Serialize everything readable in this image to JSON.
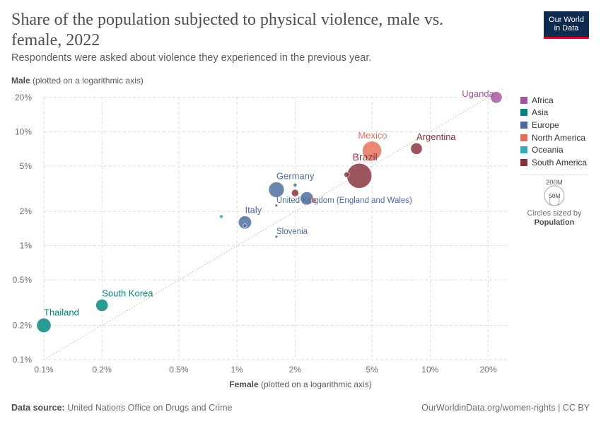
{
  "header": {
    "title": "Share of the population subjected to physical violence, male vs. female, 2022",
    "subtitle": "Respondents were asked about violence they experienced in the previous year.",
    "logo_line1": "Our World",
    "logo_line2": "in Data"
  },
  "axes": {
    "y_label_bold": "Male",
    "y_label_rest": "(plotted on a logarithmic axis)",
    "x_label_bold": "Female",
    "x_label_rest": "(plotted on a logarithmic axis)"
  },
  "footer": {
    "source_label": "Data source:",
    "source_text": "United Nations Office on Drugs and Crime",
    "credit": "OurWorldinData.org/women-rights | CC BY"
  },
  "legend": {
    "items": [
      {
        "name": "Africa",
        "color": "#a2559c"
      },
      {
        "name": "Asia",
        "color": "#00847e"
      },
      {
        "name": "Europe",
        "color": "#4c6a9c"
      },
      {
        "name": "North America",
        "color": "#e56e5a"
      },
      {
        "name": "Oceania",
        "color": "#38aaba"
      },
      {
        "name": "South America",
        "color": "#883039"
      }
    ],
    "size_big": "200M",
    "size_small": "50M",
    "size_note_line": "Circles sized by",
    "size_note_bold": "Population"
  },
  "chart_data": {
    "type": "scatter",
    "x_scale": "log",
    "y_scale": "log",
    "xlim": [
      0.1,
      25
    ],
    "ylim": [
      0.1,
      24
    ],
    "x_ticks": [
      {
        "value": 0.1,
        "label": "0.1%"
      },
      {
        "value": 0.2,
        "label": "0.2%"
      },
      {
        "value": 0.5,
        "label": "0.5%"
      },
      {
        "value": 1,
        "label": "1%"
      },
      {
        "value": 2,
        "label": "2%"
      },
      {
        "value": 5,
        "label": "5%"
      },
      {
        "value": 10,
        "label": "10%"
      },
      {
        "value": 20,
        "label": "20%"
      }
    ],
    "y_ticks": [
      {
        "value": 0.1,
        "label": "0.1%"
      },
      {
        "value": 0.2,
        "label": "0.2%"
      },
      {
        "value": 0.5,
        "label": "0.5%"
      },
      {
        "value": 1,
        "label": "1%"
      },
      {
        "value": 2,
        "label": "2%"
      },
      {
        "value": 5,
        "label": "5%"
      },
      {
        "value": 10,
        "label": "10%"
      },
      {
        "value": 20,
        "label": "20%"
      }
    ],
    "grid": true,
    "diagonal_reference_line": true,
    "legend_position": "right",
    "points": [
      {
        "label": "Uganda",
        "region": "Africa",
        "x": 22,
        "y": 20,
        "population_m": 47
      },
      {
        "label": "Argentina",
        "region": "South America",
        "x": 8.5,
        "y": 7.1,
        "population_m": 46
      },
      {
        "label": "Mexico",
        "region": "North America",
        "x": 5,
        "y": 6.8,
        "population_m": 128
      },
      {
        "label": "Brazil",
        "region": "South America",
        "x": 4.3,
        "y": 4.1,
        "population_m": 215
      },
      {
        "label": "",
        "region": "South America",
        "x": 3.7,
        "y": 4.2,
        "population_m": 10
      },
      {
        "label": "Germany",
        "region": "Europe",
        "x": 1.6,
        "y": 3.1,
        "population_m": 84
      },
      {
        "label": "",
        "region": "Europe",
        "x": 2,
        "y": 3.4,
        "population_m": 5
      },
      {
        "label": "",
        "region": "South America",
        "x": 2,
        "y": 2.9,
        "population_m": 18
      },
      {
        "label": "",
        "region": "Europe",
        "x": 2.3,
        "y": 2.6,
        "population_m": 60
      },
      {
        "label": "",
        "region": "North America",
        "x": 2.5,
        "y": 2.5,
        "population_m": 10
      },
      {
        "label": "United Kingdom (England and Wales)",
        "region": "Europe",
        "x": 1.6,
        "y": 2.25,
        "population_m": 0.5
      },
      {
        "label": "Italy",
        "region": "Europe",
        "x": 1.1,
        "y": 1.6,
        "population_m": 59
      },
      {
        "label": "",
        "region": "Europe",
        "x": 1.1,
        "y": 1.5,
        "population_m": 5
      },
      {
        "label": "",
        "region": "Oceania",
        "x": 0.83,
        "y": 1.8,
        "population_m": 5
      },
      {
        "label": "Slovenia",
        "region": "Europe",
        "x": 1.6,
        "y": 1.2,
        "population_m": 2
      },
      {
        "label": "South Korea",
        "region": "Asia",
        "x": 0.2,
        "y": 0.3,
        "population_m": 52
      },
      {
        "label": "Thailand",
        "region": "Asia",
        "x": 0.1,
        "y": 0.2,
        "population_m": 72
      }
    ]
  }
}
